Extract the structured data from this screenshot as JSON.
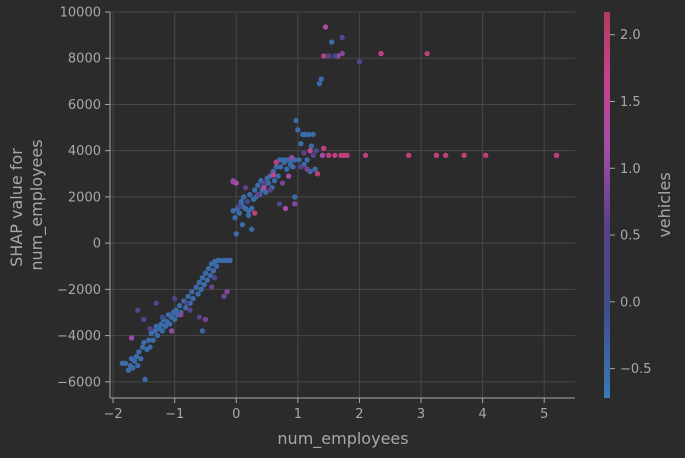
{
  "chart_data": {
    "type": "scatter",
    "title": "",
    "xlabel": "num_employees",
    "ylabel": [
      "SHAP value for",
      "num_employees"
    ],
    "xlim": [
      -2.05,
      5.5
    ],
    "ylim": [
      -6700,
      10000
    ],
    "xticks": [
      -2,
      -1,
      0,
      1,
      2,
      3,
      4,
      5
    ],
    "yticks": [
      -6000,
      -4000,
      -2000,
      0,
      2000,
      4000,
      6000,
      8000,
      10000
    ],
    "grid": true,
    "colorbar": {
      "label": "vehicles",
      "range": [
        -0.72,
        2.17
      ],
      "ticks": [
        -0.5,
        0.0,
        0.5,
        1.0,
        1.5,
        2.0
      ],
      "tick_labels": [
        "−0.5",
        "0.0",
        "0.5",
        "1.0",
        "1.5",
        "2.0"
      ],
      "colors": [
        "#3a7ab8",
        "#3f4f8c",
        "#5a3f8a",
        "#a24ea8",
        "#c8418f",
        "#b03c60"
      ]
    },
    "points": [
      [
        -1.85,
        -5200,
        -0.5
      ],
      [
        -1.8,
        -5200,
        -0.5
      ],
      [
        -1.75,
        -5500,
        -0.5
      ],
      [
        -1.72,
        -5300,
        -0.5
      ],
      [
        -1.7,
        -5000,
        -0.5
      ],
      [
        -1.68,
        -5400,
        -0.5
      ],
      [
        -1.65,
        -5100,
        -0.5
      ],
      [
        -1.62,
        -4900,
        -0.5
      ],
      [
        -1.6,
        -5300,
        -0.5
      ],
      [
        -1.58,
        -4700,
        -0.5
      ],
      [
        -1.55,
        -5000,
        -0.5
      ],
      [
        -1.52,
        -4500,
        -0.5
      ],
      [
        -1.5,
        -4300,
        -0.5
      ],
      [
        -1.48,
        -5900,
        -0.5
      ],
      [
        -1.45,
        -4600,
        -0.5
      ],
      [
        -1.42,
        -4200,
        -0.5
      ],
      [
        -1.4,
        -4500,
        -0.5
      ],
      [
        -1.38,
        -3900,
        -0.5
      ],
      [
        -1.35,
        -4200,
        -0.5
      ],
      [
        -1.32,
        -3800,
        -0.5
      ],
      [
        -1.3,
        -3600,
        -0.5
      ],
      [
        -1.28,
        -4000,
        -0.5
      ],
      [
        -1.25,
        -3700,
        -0.5
      ],
      [
        -1.22,
        -3500,
        -0.5
      ],
      [
        -1.2,
        -3800,
        -0.5
      ],
      [
        -1.18,
        -3300,
        -0.5
      ],
      [
        -1.15,
        -3600,
        -0.5
      ],
      [
        -1.12,
        -3400,
        -0.5
      ],
      [
        -1.1,
        -3100,
        -0.5
      ],
      [
        -1.08,
        -3500,
        -0.5
      ],
      [
        -1.05,
        -3200,
        -0.5
      ],
      [
        -1.02,
        -3000,
        -0.5
      ],
      [
        -1.0,
        -3300,
        -0.5
      ],
      [
        -0.98,
        -2900,
        -0.5
      ],
      [
        -0.95,
        -3100,
        -0.5
      ],
      [
        -0.92,
        -2700,
        -0.5
      ],
      [
        -0.9,
        -3000,
        -0.5
      ],
      [
        -0.85,
        -2500,
        -0.5
      ],
      [
        -0.82,
        -2800,
        -0.5
      ],
      [
        -0.78,
        -2300,
        -0.5
      ],
      [
        -0.75,
        -2600,
        -0.5
      ],
      [
        -0.72,
        -2100,
        -0.5
      ],
      [
        -0.7,
        -2400,
        -0.5
      ],
      [
        -0.65,
        -1900,
        -0.5
      ],
      [
        -0.62,
        -2200,
        -0.5
      ],
      [
        -0.6,
        -1700,
        -0.5
      ],
      [
        -0.57,
        -2000,
        -0.5
      ],
      [
        -0.55,
        -1500,
        -0.5
      ],
      [
        -0.52,
        -1800,
        -0.5
      ],
      [
        -0.5,
        -1300,
        -0.5
      ],
      [
        -0.47,
        -1600,
        -0.5
      ],
      [
        -0.45,
        -1100,
        -0.5
      ],
      [
        -0.42,
        -1400,
        -0.5
      ],
      [
        -0.4,
        -900,
        -0.5
      ],
      [
        -0.37,
        -1200,
        -0.5
      ],
      [
        -0.35,
        -800,
        -0.5
      ],
      [
        -0.32,
        -1000,
        -0.5
      ],
      [
        -0.3,
        -750,
        -0.5
      ],
      [
        -0.25,
        -750,
        -0.5
      ],
      [
        -0.2,
        -750,
        -0.5
      ],
      [
        -0.15,
        -750,
        -0.5
      ],
      [
        -0.1,
        -750,
        -0.5
      ],
      [
        -1.6,
        -2900,
        0.2
      ],
      [
        -1.5,
        -3300,
        0.3
      ],
      [
        -1.3,
        -2600,
        0.1
      ],
      [
        -1.0,
        -2400,
        0.4
      ],
      [
        -0.8,
        -2600,
        0.2
      ],
      [
        -0.6,
        -3200,
        0.5
      ],
      [
        -0.5,
        -3300,
        0.8
      ],
      [
        -0.9,
        -3100,
        0.9
      ],
      [
        -1.7,
        -4100,
        1.1
      ],
      [
        -1.4,
        -3700,
        0.6
      ],
      [
        -0.4,
        -1900,
        0.7
      ],
      [
        -0.2,
        -2300,
        0.8
      ],
      [
        -0.15,
        -2100,
        0.9
      ],
      [
        -0.35,
        -1500,
        0.3
      ],
      [
        -0.55,
        -3800,
        -0.4
      ],
      [
        -0.75,
        -2900,
        0.6
      ],
      [
        -1.05,
        -3800,
        1.0
      ],
      [
        -1.2,
        -3200,
        0.0
      ],
      [
        -0.05,
        2650,
        1.4
      ],
      [
        0.0,
        2600,
        1.2
      ],
      [
        -0.05,
        1400,
        -0.5
      ],
      [
        -0.02,
        1100,
        -0.5
      ],
      [
        0.02,
        1500,
        -0.5
      ],
      [
        0.05,
        1300,
        -0.5
      ],
      [
        0.08,
        1800,
        -0.5
      ],
      [
        0.1,
        1600,
        -0.5
      ],
      [
        0.12,
        2000,
        -0.5
      ],
      [
        0.15,
        1500,
        -0.5
      ],
      [
        0.18,
        1800,
        0.0
      ],
      [
        0.2,
        1200,
        -0.5
      ],
      [
        0.22,
        2100,
        -0.5
      ],
      [
        0.25,
        1500,
        -0.5
      ],
      [
        0.28,
        1900,
        -0.5
      ],
      [
        0.3,
        2300,
        -0.5
      ],
      [
        0.32,
        2000,
        -0.5
      ],
      [
        0.35,
        2500,
        -0.5
      ],
      [
        0.38,
        2100,
        -0.5
      ],
      [
        0.4,
        2700,
        -0.5
      ],
      [
        0.42,
        2300,
        -0.5
      ],
      [
        0.45,
        2500,
        -0.5
      ],
      [
        0.48,
        2200,
        -0.5
      ],
      [
        0.5,
        2800,
        -0.5
      ],
      [
        0.52,
        2600,
        -0.5
      ],
      [
        0.55,
        2900,
        -0.5
      ],
      [
        0.58,
        2400,
        -0.5
      ],
      [
        0.6,
        3100,
        -0.5
      ],
      [
        0.62,
        2700,
        -0.5
      ],
      [
        0.65,
        3300,
        -0.5
      ],
      [
        0.68,
        2900,
        -0.5
      ],
      [
        0.7,
        3600,
        -0.5
      ],
      [
        0.72,
        3300,
        -0.5
      ],
      [
        0.75,
        3600,
        -0.5
      ],
      [
        0.78,
        3500,
        -0.5
      ],
      [
        0.8,
        3600,
        -0.5
      ],
      [
        0.82,
        3200,
        -0.5
      ],
      [
        0.85,
        3600,
        -0.5
      ],
      [
        0.88,
        3400,
        -0.5
      ],
      [
        0.9,
        3600,
        -0.5
      ],
      [
        0.92,
        3300,
        -0.5
      ],
      [
        0.95,
        3600,
        -0.5
      ],
      [
        0.97,
        5300,
        -0.5
      ],
      [
        1.0,
        4900,
        -0.5
      ],
      [
        1.02,
        3600,
        -0.5
      ],
      [
        1.05,
        4300,
        -0.5
      ],
      [
        1.08,
        4700,
        -0.5
      ],
      [
        1.1,
        3400,
        -0.5
      ],
      [
        1.12,
        4700,
        -0.5
      ],
      [
        1.15,
        3600,
        -0.5
      ],
      [
        1.18,
        4700,
        -0.5
      ],
      [
        1.2,
        3100,
        -0.5
      ],
      [
        1.22,
        4200,
        -0.5
      ],
      [
        1.25,
        4700,
        -0.5
      ],
      [
        1.28,
        3200,
        -0.5
      ],
      [
        1.3,
        4000,
        0.1
      ],
      [
        1.32,
        3000,
        1.9
      ],
      [
        1.35,
        6900,
        -0.5
      ],
      [
        1.38,
        7100,
        -0.5
      ],
      [
        1.42,
        8100,
        1.9
      ],
      [
        1.45,
        9350,
        1.3
      ],
      [
        1.5,
        8100,
        0.4
      ],
      [
        1.55,
        8700,
        -0.5
      ],
      [
        1.6,
        3800,
        1.8
      ],
      [
        1.65,
        8100,
        1.1
      ],
      [
        1.7,
        3800,
        1.9
      ],
      [
        1.72,
        8200,
        0.9
      ],
      [
        1.75,
        3800,
        1.9
      ],
      [
        1.8,
        3800,
        1.9
      ],
      [
        1.72,
        8900,
        0.2
      ],
      [
        2.0,
        7850,
        0.3
      ],
      [
        2.1,
        3800,
        1.9
      ],
      [
        2.35,
        8200,
        1.7
      ],
      [
        2.8,
        3800,
        1.9
      ],
      [
        3.1,
        8200,
        1.9
      ],
      [
        3.25,
        3800,
        1.9
      ],
      [
        3.4,
        3800,
        1.9
      ],
      [
        3.7,
        3800,
        1.9
      ],
      [
        4.05,
        3800,
        1.9
      ],
      [
        5.2,
        3800,
        1.9
      ],
      [
        1.42,
        4100,
        1.9
      ],
      [
        1.2,
        4000,
        1.5
      ],
      [
        0.6,
        2950,
        1.6
      ],
      [
        0.45,
        2400,
        1.3
      ],
      [
        0.3,
        1300,
        1.9
      ],
      [
        0.05,
        1600,
        0.3
      ],
      [
        0.35,
        2100,
        0.7
      ],
      [
        0.7,
        1700,
        0.2
      ],
      [
        0.8,
        1500,
        1.2
      ],
      [
        0.9,
        3700,
        1.0
      ],
      [
        1.1,
        3900,
        0.6
      ],
      [
        1.25,
        3800,
        0.3
      ],
      [
        1.4,
        3800,
        1.1
      ],
      [
        0.95,
        2000,
        -0.5
      ],
      [
        0.95,
        1700,
        0.9
      ],
      [
        0.55,
        2300,
        0.5
      ],
      [
        0.1,
        800,
        -0.5
      ],
      [
        0.0,
        400,
        -0.5
      ],
      [
        0.25,
        600,
        -0.5
      ],
      [
        0.75,
        2600,
        0.8
      ],
      [
        1.05,
        3300,
        0.5
      ],
      [
        0.65,
        3500,
        1.8
      ],
      [
        0.85,
        2900,
        1.2
      ],
      [
        0.15,
        2400,
        0.6
      ],
      [
        -0.05,
        2700,
        1.0
      ],
      [
        1.5,
        3800,
        1.9
      ],
      [
        1.6,
        8100,
        0.1
      ],
      [
        0.2,
        1400,
        -0.5
      ],
      [
        0.45,
        2600,
        0.3
      ],
      [
        1.15,
        3200,
        0.8
      ]
    ]
  }
}
